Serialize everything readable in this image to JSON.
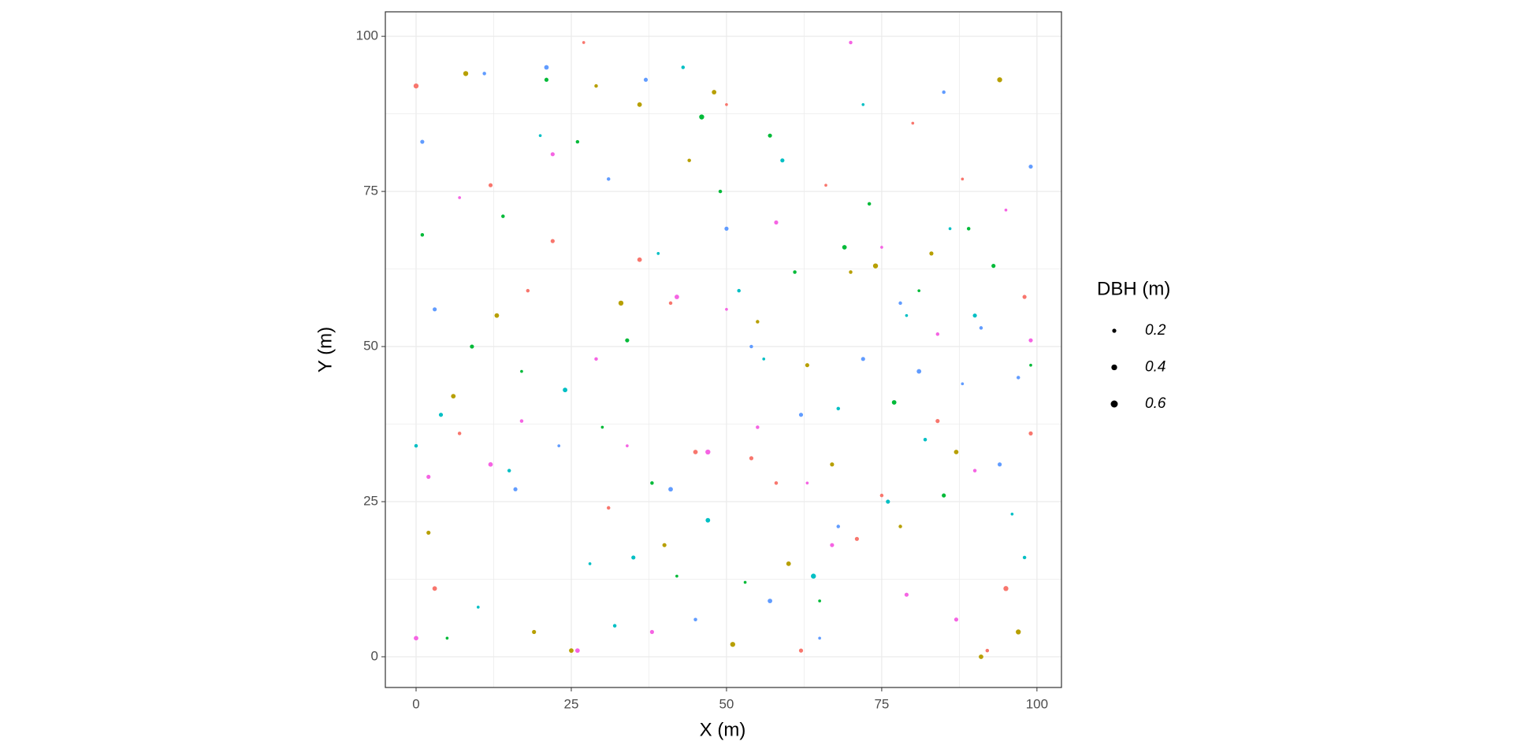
{
  "chart_data": {
    "type": "scatter",
    "x_label": "X (m)",
    "y_label": "Y (m)",
    "xlim": [
      -4.95,
      103.95
    ],
    "ylim": [
      -4.95,
      103.95
    ],
    "xticks": [
      0,
      25,
      50,
      75,
      100
    ],
    "yticks": [
      0,
      25,
      50,
      75,
      100
    ],
    "xminor": [
      12.5,
      37.5,
      62.5,
      87.5
    ],
    "yminor": [
      12.5,
      37.5,
      62.5,
      87.5
    ],
    "grid": true,
    "size_legend": {
      "title": "DBH (m)",
      "values": [
        0.2,
        0.4,
        0.6
      ],
      "color": "#000000",
      "position": "right"
    },
    "series": [
      {
        "color": "#F8766D",
        "x": [
          0,
          3,
          7,
          12,
          18,
          22,
          27,
          31,
          36,
          41,
          45,
          50,
          54,
          58,
          62,
          66,
          71,
          75,
          80,
          84,
          88,
          92,
          95,
          98,
          99
        ],
        "values": [
          92,
          11,
          36,
          76,
          59,
          67,
          99,
          24,
          64,
          57,
          33,
          89,
          32,
          28,
          1,
          76,
          19,
          26,
          86,
          38,
          77,
          1,
          11,
          58,
          36
        ],
        "sizes": [
          0.3,
          0.25,
          0.15,
          0.2,
          0.15,
          0.2,
          0.1,
          0.15,
          0.25,
          0.15,
          0.25,
          0.1,
          0.2,
          0.15,
          0.2,
          0.1,
          0.2,
          0.15,
          0.1,
          0.2,
          0.1,
          0.15,
          0.3,
          0.2,
          0.2
        ]
      },
      {
        "color": "#B79F00",
        "x": [
          2,
          6,
          8,
          13,
          19,
          25,
          29,
          33,
          36,
          40,
          44,
          48,
          51,
          55,
          60,
          63,
          67,
          70,
          74,
          78,
          83,
          87,
          91,
          94,
          97
        ],
        "values": [
          20,
          42,
          94,
          55,
          4,
          1,
          92,
          57,
          89,
          18,
          80,
          91,
          2,
          54,
          15,
          47,
          31,
          62,
          63,
          21,
          65,
          33,
          0,
          93,
          4
        ],
        "sizes": [
          0.2,
          0.25,
          0.3,
          0.25,
          0.2,
          0.25,
          0.15,
          0.3,
          0.25,
          0.2,
          0.15,
          0.25,
          0.3,
          0.15,
          0.25,
          0.2,
          0.2,
          0.15,
          0.3,
          0.15,
          0.2,
          0.25,
          0.25,
          0.3,
          0.3
        ]
      },
      {
        "color": "#00BA38",
        "x": [
          1,
          5,
          9,
          14,
          17,
          21,
          26,
          30,
          34,
          38,
          42,
          46,
          49,
          53,
          57,
          61,
          65,
          69,
          73,
          77,
          81,
          85,
          89,
          93,
          99
        ],
        "values": [
          68,
          3,
          50,
          71,
          46,
          93,
          83,
          37,
          51,
          28,
          13,
          87,
          75,
          12,
          84,
          62,
          9,
          66,
          73,
          41,
          59,
          26,
          69,
          63,
          47
        ],
        "sizes": [
          0.15,
          0.1,
          0.2,
          0.15,
          0.1,
          0.2,
          0.15,
          0.1,
          0.2,
          0.15,
          0.1,
          0.3,
          0.15,
          0.1,
          0.2,
          0.15,
          0.1,
          0.25,
          0.15,
          0.25,
          0.1,
          0.2,
          0.15,
          0.2,
          0.1
        ]
      },
      {
        "color": "#00BFC4",
        "x": [
          0,
          4,
          10,
          15,
          20,
          24,
          28,
          32,
          35,
          39,
          43,
          47,
          52,
          56,
          59,
          64,
          68,
          72,
          76,
          79,
          82,
          86,
          90,
          96,
          98
        ],
        "values": [
          34,
          39,
          8,
          30,
          84,
          43,
          15,
          5,
          16,
          65,
          95,
          22,
          59,
          48,
          80,
          13,
          40,
          89,
          25,
          55,
          35,
          69,
          55,
          23,
          16
        ],
        "sizes": [
          0.15,
          0.2,
          0.1,
          0.15,
          0.1,
          0.25,
          0.1,
          0.15,
          0.2,
          0.1,
          0.15,
          0.25,
          0.15,
          0.1,
          0.2,
          0.3,
          0.15,
          0.1,
          0.2,
          0.1,
          0.15,
          0.1,
          0.2,
          0.1,
          0.15
        ]
      },
      {
        "color": "#619CFF",
        "x": [
          1,
          3,
          11,
          16,
          21,
          23,
          31,
          37,
          41,
          45,
          50,
          54,
          57,
          62,
          65,
          68,
          72,
          78,
          81,
          85,
          88,
          91,
          94,
          97,
          99
        ],
        "values": [
          83,
          56,
          94,
          27,
          95,
          34,
          77,
          93,
          27,
          6,
          69,
          50,
          9,
          39,
          3,
          21,
          48,
          57,
          46,
          91,
          44,
          53,
          31,
          45,
          79
        ],
        "sizes": [
          0.2,
          0.2,
          0.15,
          0.2,
          0.25,
          0.1,
          0.15,
          0.2,
          0.25,
          0.15,
          0.2,
          0.15,
          0.25,
          0.2,
          0.1,
          0.15,
          0.2,
          0.15,
          0.25,
          0.15,
          0.1,
          0.15,
          0.2,
          0.15,
          0.2
        ]
      },
      {
        "color": "#F564E3",
        "x": [
          0,
          2,
          7,
          12,
          17,
          22,
          26,
          29,
          34,
          38,
          42,
          47,
          50,
          55,
          58,
          63,
          67,
          70,
          75,
          79,
          84,
          87,
          90,
          95,
          99
        ],
        "values": [
          3,
          29,
          74,
          31,
          38,
          81,
          1,
          48,
          34,
          4,
          58,
          33,
          56,
          37,
          70,
          28,
          18,
          99,
          66,
          10,
          52,
          6,
          30,
          72,
          51
        ],
        "sizes": [
          0.25,
          0.2,
          0.1,
          0.25,
          0.15,
          0.2,
          0.25,
          0.15,
          0.1,
          0.2,
          0.25,
          0.3,
          0.1,
          0.15,
          0.2,
          0.1,
          0.2,
          0.15,
          0.1,
          0.2,
          0.15,
          0.2,
          0.15,
          0.1,
          0.2
        ]
      }
    ]
  }
}
